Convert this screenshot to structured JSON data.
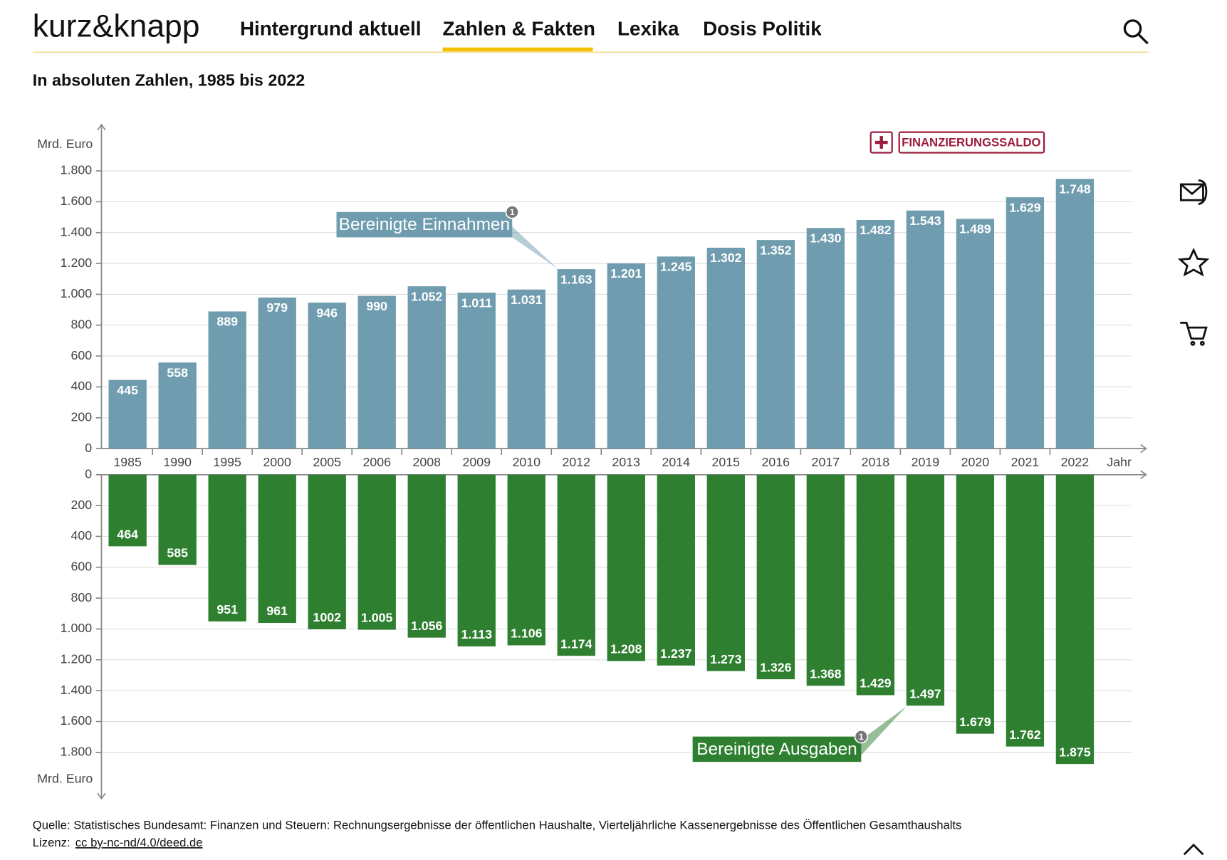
{
  "header": {
    "logo": "kurz&knapp",
    "nav": [
      "Hintergrund aktuell",
      "Zahlen & Fakten",
      "Lexika",
      "Dosis Politik"
    ]
  },
  "subtitle": "In absoluten Zahlen, 1985 bis 2022",
  "chart_data": {
    "type": "bar",
    "y_label": "Mrd. Euro",
    "x_label": "Jahr",
    "legend_button": "FINANZIERUNGSSALDO",
    "note_marker": "1",
    "categories": [
      "1985",
      "1990",
      "1995",
      "2000",
      "2005",
      "2006",
      "2008",
      "2009",
      "2010",
      "2012",
      "2013",
      "2014",
      "2015",
      "2016",
      "2017",
      "2018",
      "2019",
      "2020",
      "2021",
      "2022"
    ],
    "series": [
      {
        "name": "Bereinigte Einnahmen",
        "color": "#6f9cae",
        "values": [
          445,
          558,
          889,
          979,
          946,
          990,
          1052,
          1011,
          1031,
          1163,
          1201,
          1245,
          1302,
          1352,
          1430,
          1482,
          1543,
          1489,
          1629,
          1748
        ],
        "value_labels": [
          "445",
          "558",
          "889",
          "979",
          "946",
          "990",
          "1.052",
          "1.011",
          "1.031",
          "1.163",
          "1.201",
          "1.245",
          "1.302",
          "1.352",
          "1.430",
          "1.482",
          "1.543",
          "1.489",
          "1.629",
          "1.748"
        ]
      },
      {
        "name": "Bereinigte Ausgaben",
        "color": "#2e8030",
        "values": [
          464,
          585,
          951,
          961,
          1002,
          1005,
          1056,
          1113,
          1106,
          1174,
          1208,
          1237,
          1273,
          1326,
          1368,
          1429,
          1497,
          1679,
          1762,
          1875
        ],
        "value_labels": [
          "464",
          "585",
          "951",
          "961",
          "1002",
          "1.005",
          "1.056",
          "1.113",
          "1.106",
          "1.174",
          "1.208",
          "1.237",
          "1.273",
          "1.326",
          "1.368",
          "1.429",
          "1.497",
          "1.679",
          "1.762",
          "1.875"
        ]
      }
    ],
    "ylim": [
      0,
      2100
    ],
    "yticks": [
      0,
      200,
      400,
      600,
      800,
      {
        "value": 1000,
        "label": "1.000"
      },
      {
        "value": 1200,
        "label": "1.200"
      },
      {
        "value": 1400,
        "label": "1.400"
      },
      {
        "value": 1600,
        "label": "1.600"
      },
      {
        "value": 1800,
        "label": "1.800"
      }
    ],
    "grid": true
  },
  "source": "Quelle: Statistisches Bundesamt: Finanzen und Steuern: Rechnungsergebnisse der öffentlichen Haushalte, Vierteljährliche Kassenergebnisse des Öffentlichen Gesamthaushalts",
  "license": {
    "label": "Lizenz:",
    "link": "cc by-nc-nd/4.0/deed.de"
  }
}
